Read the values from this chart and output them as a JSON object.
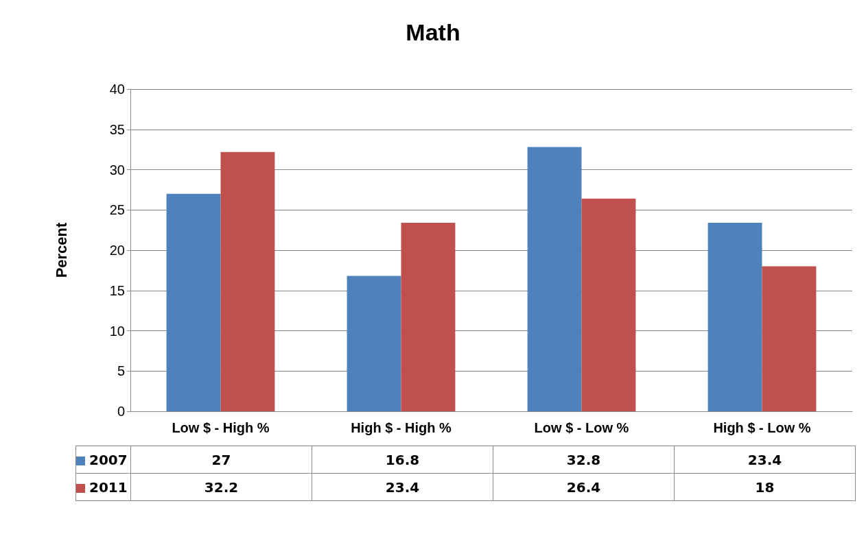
{
  "chart_data": {
    "type": "bar",
    "title": "Math",
    "ylabel": "Percent",
    "categories": [
      "Low $ - High %",
      "High $ - High %",
      "Low $ - Low %",
      "High $ - Low %"
    ],
    "series": [
      {
        "name": "2007",
        "color": "#4f81bd",
        "values": [
          27,
          16.8,
          32.8,
          23.4
        ]
      },
      {
        "name": "2011",
        "color": "#c0504d",
        "values": [
          32.2,
          23.4,
          26.4,
          18
        ]
      }
    ],
    "ylim": [
      0,
      40
    ],
    "yticks": [
      0,
      5,
      10,
      15,
      20,
      25,
      30,
      35,
      40
    ],
    "grid": "y",
    "legend": "bottom",
    "data_labels": true
  }
}
